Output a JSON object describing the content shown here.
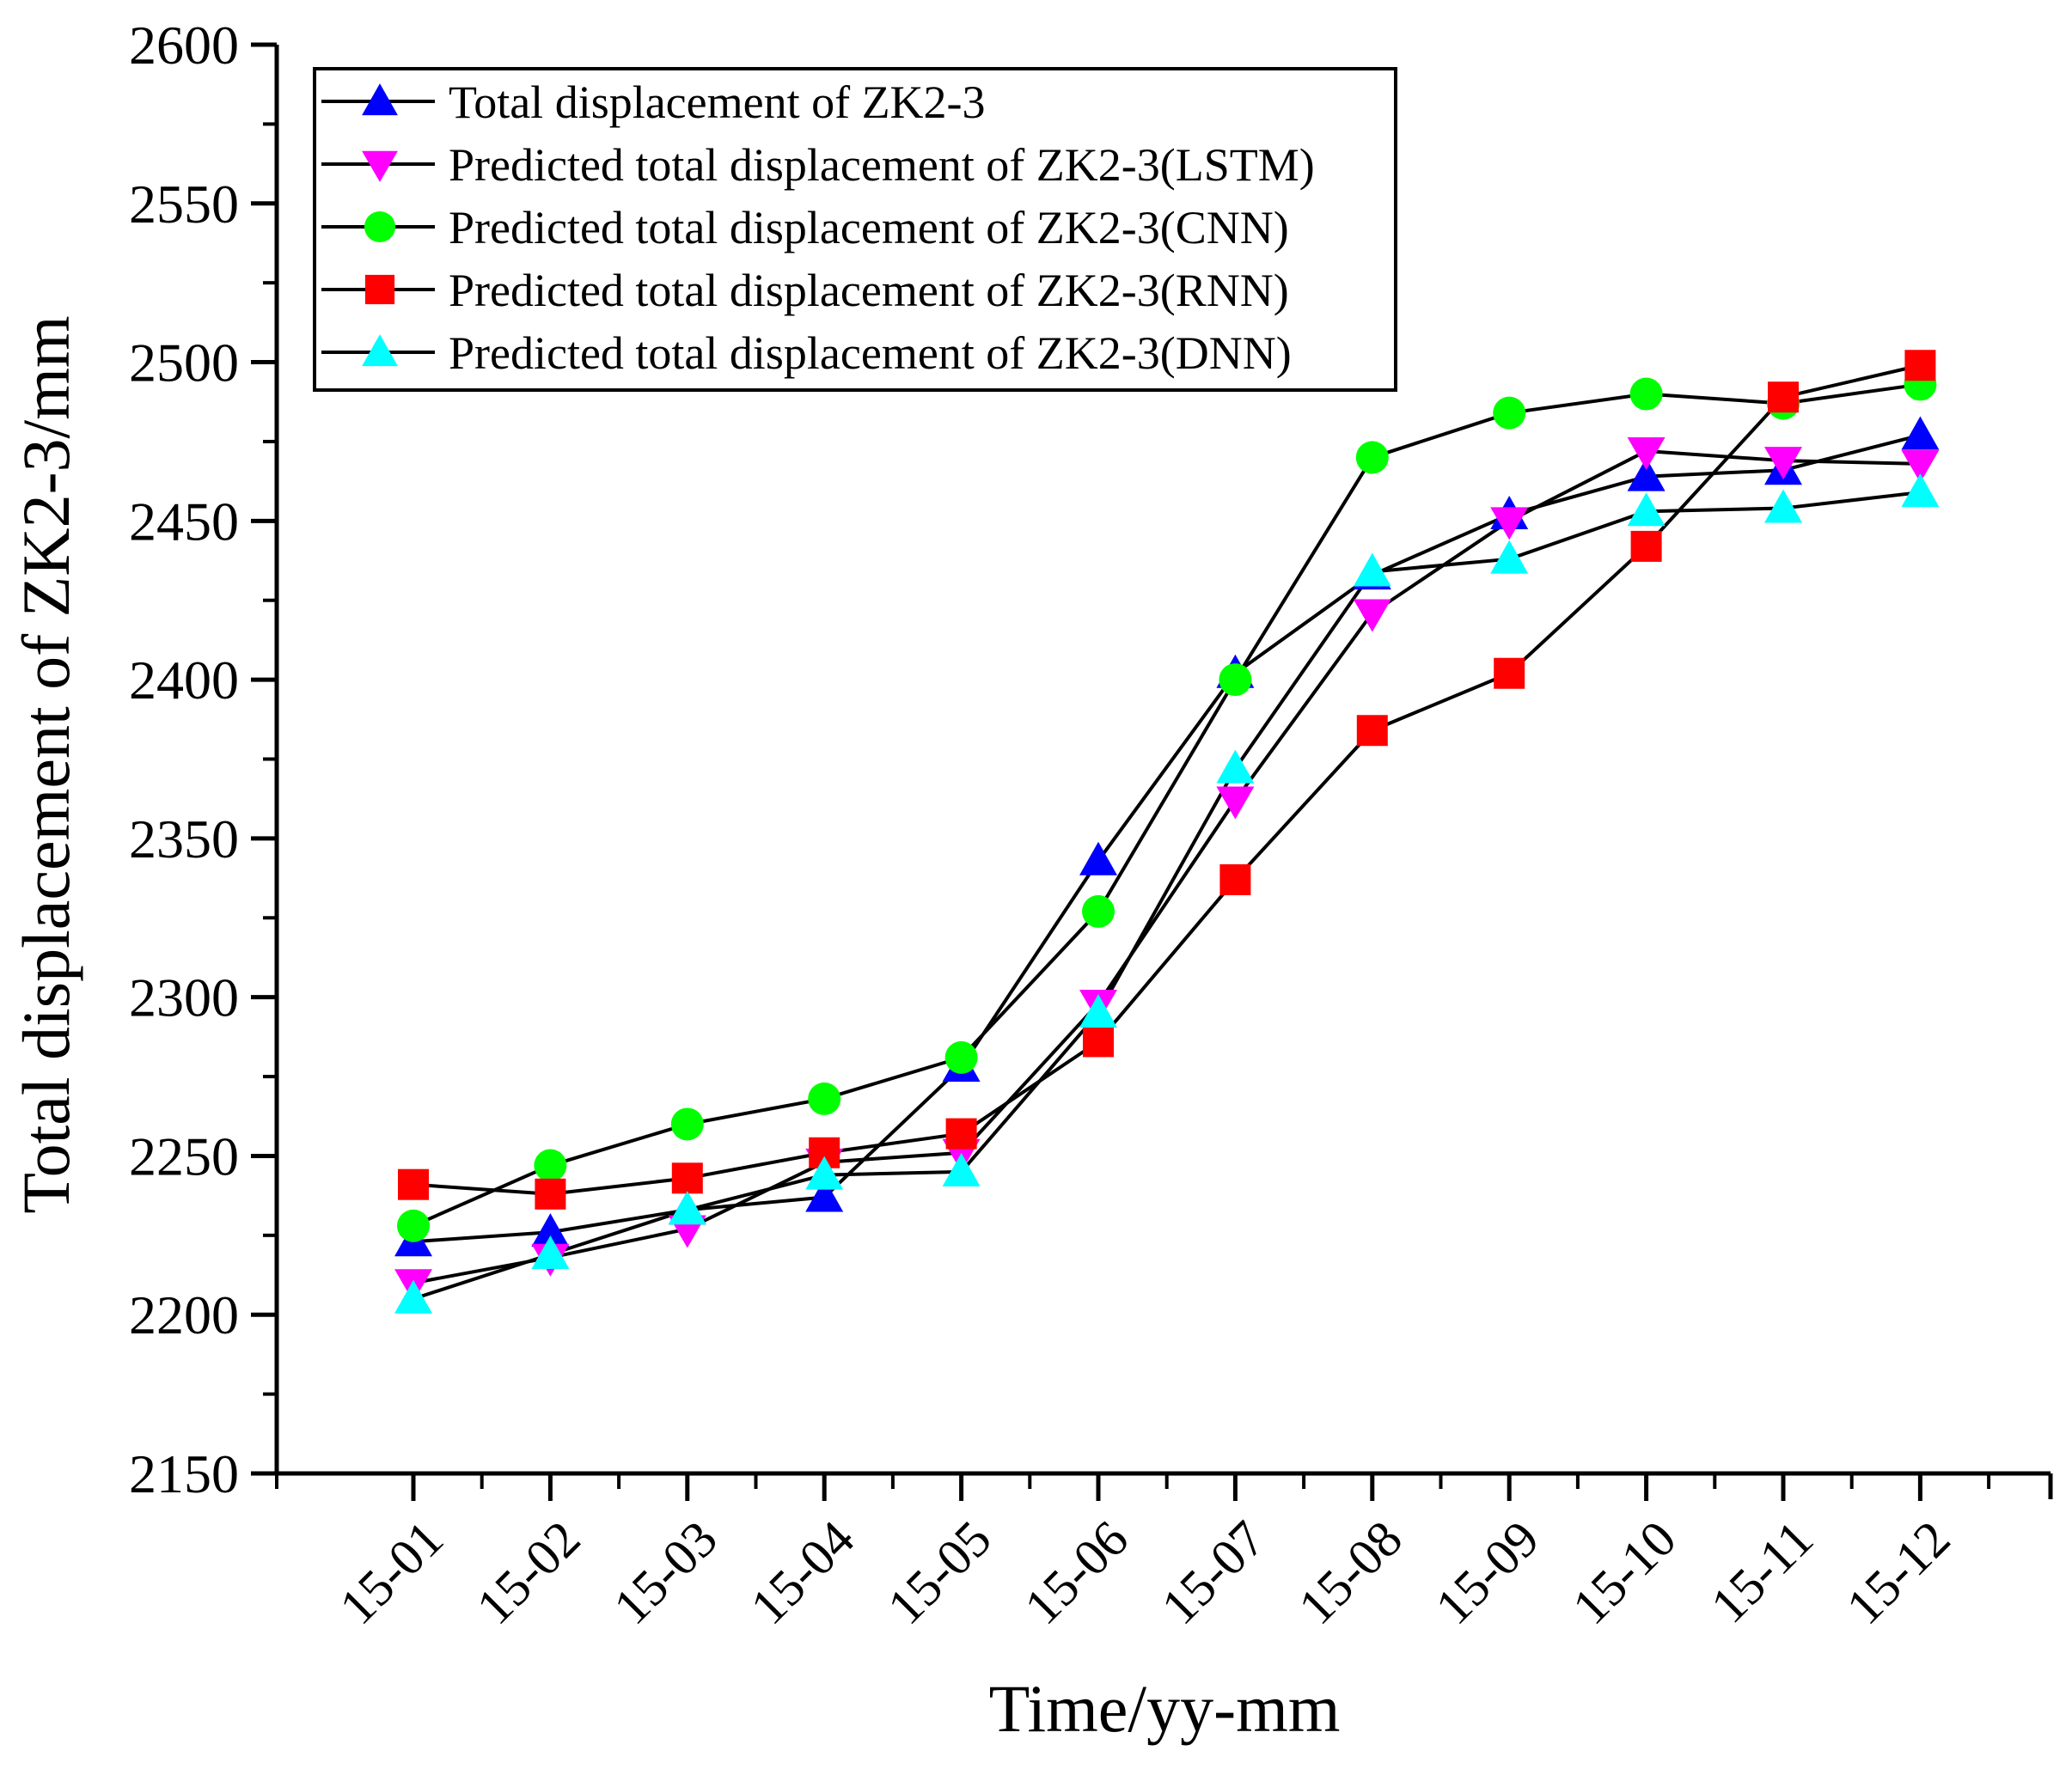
{
  "chart_data": {
    "type": "line",
    "title": "",
    "xlabel": "Time/yy-mm",
    "ylabel": "Total displacement of ZK2-3/mm",
    "categories": [
      "15-01",
      "15-02",
      "15-03",
      "15-04",
      "15-05",
      "15-06",
      "15-07",
      "15-08",
      "15-09",
      "15-10",
      "15-11",
      "15-12"
    ],
    "ylim": [
      2150,
      2600
    ],
    "yticks": [
      2150,
      2200,
      2250,
      2300,
      2350,
      2400,
      2450,
      2500,
      2550,
      2600
    ],
    "grid": false,
    "legend_position": "top-left",
    "series": [
      {
        "name": "Total displacement of ZK2-3",
        "marker": "triangle-up",
        "color": "#0000ff",
        "values": [
          2223,
          2226,
          2233,
          2237,
          2278,
          2343,
          2402,
          2433,
          2452,
          2464,
          2466,
          2477
        ]
      },
      {
        "name": "Predicted total displacement of ZK2-3(LSTM)",
        "marker": "triangle-down",
        "color": "#ff00ff",
        "values": [
          2210,
          2218,
          2227,
          2248,
          2251,
          2298,
          2362,
          2421,
          2450,
          2472,
          2469,
          2468
        ]
      },
      {
        "name": "Predicted total displacement of ZK2-3(CNN)",
        "marker": "circle",
        "color": "#00ff00",
        "values": [
          2228,
          2247,
          2260,
          2268,
          2281,
          2327,
          2400,
          2470,
          2484,
          2490,
          2487,
          2493
        ]
      },
      {
        "name": "Predicted total displacement of ZK2-3(RNN)",
        "marker": "square",
        "color": "#ff0000",
        "values": [
          2241,
          2238,
          2243,
          2251,
          2257,
          2286,
          2337,
          2384,
          2402,
          2442,
          2489,
          2499
        ]
      },
      {
        "name": "Predicted total displacement of ZK2-3(DNN)",
        "marker": "triangle-up",
        "color": "#00ffff",
        "values": [
          2205,
          2219,
          2233,
          2244,
          2245,
          2295,
          2372,
          2434,
          2438,
          2453,
          2454,
          2459
        ]
      }
    ]
  }
}
